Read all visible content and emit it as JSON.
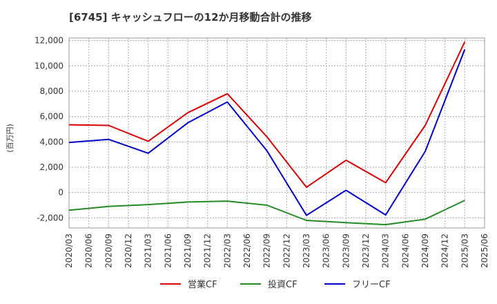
{
  "chart_data": {
    "type": "line",
    "title": "[6745]  キャッシュフローの12か月移動合計の推移",
    "ylabel": "(百万円)",
    "xlabel": "",
    "ylim": [
      -2800,
      12200
    ],
    "yticks": [
      -2000,
      0,
      2000,
      4000,
      6000,
      8000,
      10000,
      12000
    ],
    "ytick_labels": [
      "-2,000",
      "0",
      "2,000",
      "4,000",
      "6,000",
      "8,000",
      "10,000",
      "12,000"
    ],
    "categories": [
      "2020/03",
      "2020/06",
      "2020/09",
      "2020/12",
      "2021/03",
      "2021/06",
      "2021/09",
      "2021/12",
      "2022/03",
      "2022/06",
      "2022/09",
      "2022/12",
      "2023/03",
      "2023/06",
      "2023/09",
      "2023/12",
      "2024/03",
      "2024/06",
      "2024/09",
      "2024/12",
      "2025/03",
      "2025/06"
    ],
    "grid": true,
    "legend_position": "bottom",
    "series": [
      {
        "name": "営業CF",
        "color": "#dd0000",
        "points": [
          [
            "2020/03",
            5350
          ],
          [
            "2020/09",
            5300
          ],
          [
            "2021/03",
            4050
          ],
          [
            "2021/09",
            6300
          ],
          [
            "2022/03",
            7800
          ],
          [
            "2022/09",
            4400
          ],
          [
            "2023/03",
            420
          ],
          [
            "2023/09",
            2550
          ],
          [
            "2024/03",
            780
          ],
          [
            "2024/09",
            5300
          ],
          [
            "2025/03",
            11900
          ]
        ]
      },
      {
        "name": "投資CF",
        "color": "#228b22",
        "points": [
          [
            "2020/03",
            -1400
          ],
          [
            "2020/09",
            -1100
          ],
          [
            "2021/03",
            -950
          ],
          [
            "2021/09",
            -750
          ],
          [
            "2022/03",
            -680
          ],
          [
            "2022/09",
            -1000
          ],
          [
            "2023/03",
            -2200
          ],
          [
            "2023/09",
            -2380
          ],
          [
            "2024/03",
            -2530
          ],
          [
            "2024/09",
            -2100
          ],
          [
            "2025/03",
            -620
          ]
        ]
      },
      {
        "name": "フリーCF",
        "color": "#0000cc",
        "points": [
          [
            "2020/03",
            3950
          ],
          [
            "2020/09",
            4200
          ],
          [
            "2021/03",
            3100
          ],
          [
            "2021/09",
            5500
          ],
          [
            "2022/03",
            7150
          ],
          [
            "2022/09",
            3300
          ],
          [
            "2023/03",
            -1800
          ],
          [
            "2023/09",
            180
          ],
          [
            "2024/03",
            -1770
          ],
          [
            "2024/09",
            3250
          ],
          [
            "2025/03",
            11300
          ]
        ]
      }
    ]
  }
}
